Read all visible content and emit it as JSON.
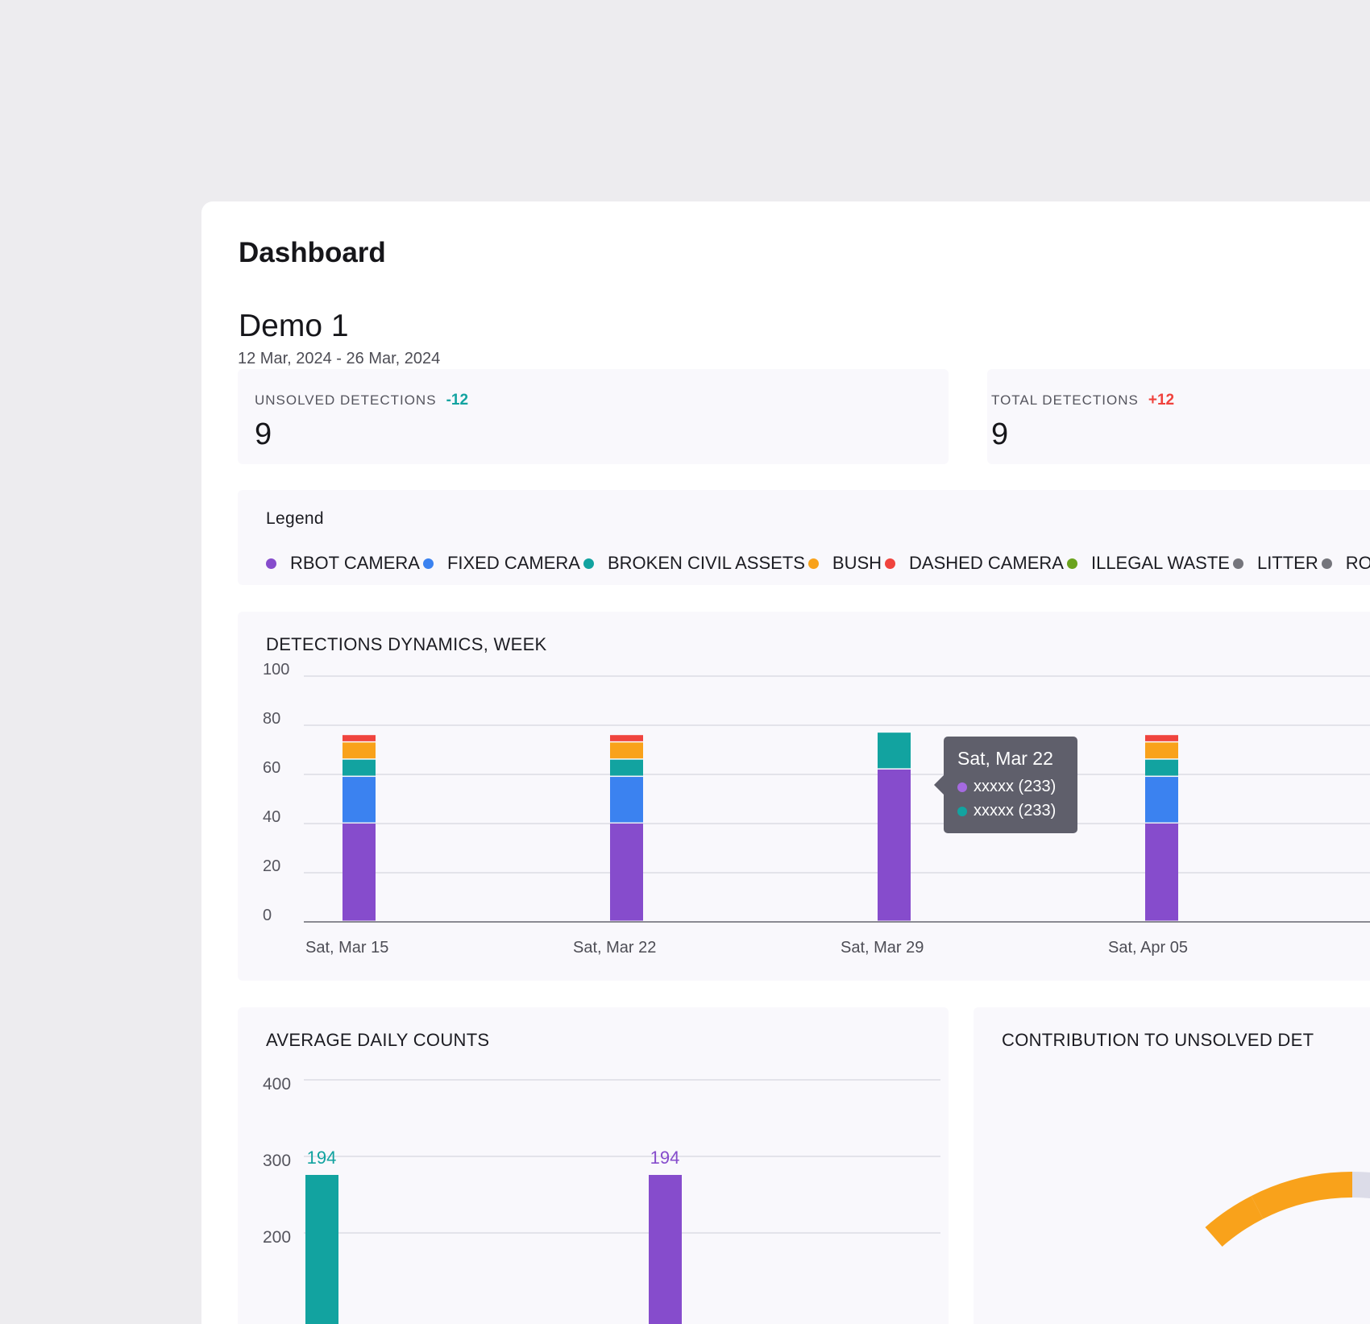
{
  "header": {
    "title": "Dashboard"
  },
  "project": {
    "name": "Demo 1",
    "date_range": "12 Mar, 2024 - 26 Mar, 2024"
  },
  "stats": [
    {
      "label": "UNSOLVED DETECTIONS",
      "delta": "-12",
      "delta_color": "#12a3a0",
      "value": "9"
    },
    {
      "label": "TOTAL DETECTIONS",
      "delta": "+12",
      "delta_color": "#f0413c",
      "value": "9"
    }
  ],
  "legend": {
    "title": "Legend",
    "items": [
      {
        "label": "RBOT CAMERA",
        "color": "#864ccc"
      },
      {
        "label": "FIXED CAMERA",
        "color": "#3b82f0"
      },
      {
        "label": "BROKEN CIVIL ASSETS",
        "color": "#12a3a0"
      },
      {
        "label": "BUSH",
        "color": "#f9a21b"
      },
      {
        "label": "DASHED CAMERA",
        "color": "#f0443e"
      },
      {
        "label": "ILLEGAL WASTE",
        "color": "#6ba31e"
      },
      {
        "label": "LITTER",
        "color": "#75757c"
      },
      {
        "label": "ROAD",
        "color": "#75757c"
      }
    ]
  },
  "chart_data": [
    {
      "type": "bar",
      "stacked": true,
      "title": "DETECTIONS DYNAMICS, WEEK",
      "categories": [
        "Sat, Mar 15",
        "Sat, Mar 22",
        "Sat, Mar 29",
        "Sat, Apr 05"
      ],
      "ylim": [
        0,
        100
      ],
      "yticks": [
        "100",
        "80",
        "60",
        "40",
        "20",
        "0"
      ],
      "grid": true,
      "series": [
        {
          "color": "#864ccc",
          "values": [
            40,
            40,
            62,
            40
          ]
        },
        {
          "color": "#3b82f0",
          "values": [
            19,
            19,
            0,
            19
          ]
        },
        {
          "color": "#12a3a0",
          "values": [
            7,
            7,
            15,
            7
          ]
        },
        {
          "color": "#f9a21b",
          "values": [
            7,
            7,
            0,
            7
          ]
        },
        {
          "color": "#f0443e",
          "values": [
            3,
            3,
            0,
            3
          ]
        }
      ],
      "tooltip": {
        "title": "Sat, Mar 22",
        "rows": [
          {
            "text": "xxxxx (233)",
            "color": "#a56ae0"
          },
          {
            "text": "xxxxx (233)",
            "color": "#12a3a0"
          }
        ]
      }
    },
    {
      "type": "bar",
      "title": "AVERAGE DAILY COUNTS",
      "ylim": [
        200,
        400
      ],
      "yticks": [
        "400",
        "300",
        "200"
      ],
      "grid": true,
      "bars": [
        {
          "value": 194,
          "label": "194",
          "color": "#12a3a0"
        },
        {
          "value": 194,
          "label": "194",
          "color": "#864ccc"
        }
      ]
    },
    {
      "type": "pie",
      "title": "CONTRIBUTION TO UNSOLVED DET"
    }
  ]
}
